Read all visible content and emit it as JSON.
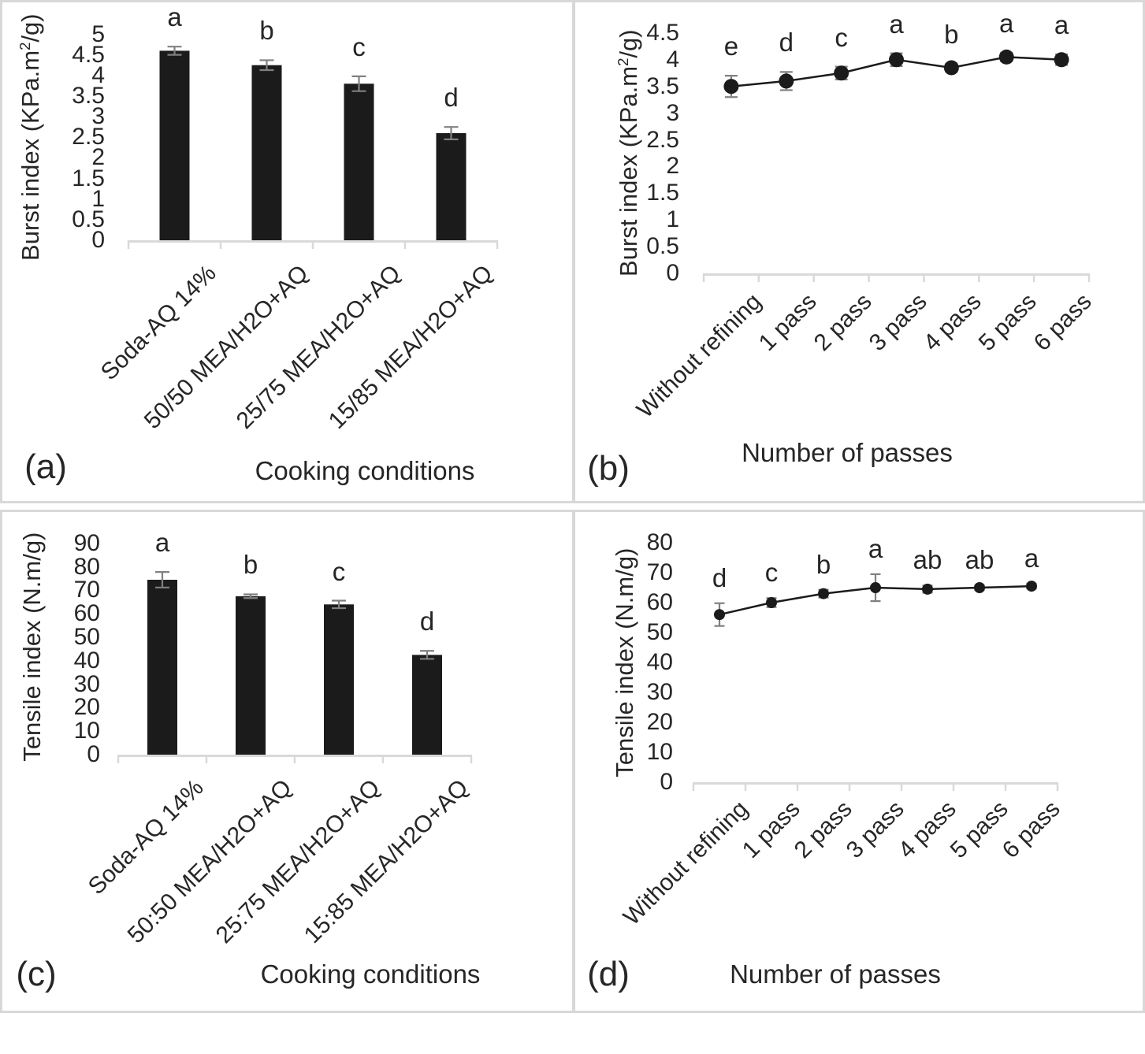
{
  "figure": {
    "background": "#ffffff",
    "border_color": "#d8d8d8",
    "text_color": "#262626",
    "bar_color": "#1b1b1b",
    "line_color": "#1b1b1b",
    "marker_color": "#1b1b1b",
    "error_bar_color": "#808080",
    "axis_color": "#d9d9d9",
    "grid": false,
    "legend": null
  },
  "chart_data": [
    {
      "id": "a",
      "type": "bar",
      "panel_label": "(a)",
      "xlabel": "Cooking conditions",
      "ylabel": "Burst index (KPa.m2/g)",
      "ylabel_parts": {
        "pre": "Burst index (KPa.m",
        "sup": "2",
        "post": "/g)"
      },
      "categories": [
        "Soda-AQ 14%",
        "50/50 MEA/H2O+AQ",
        "25/75 MEA/H2O+AQ",
        "15/85 MEA/H2O+AQ"
      ],
      "values": [
        4.6,
        4.25,
        3.8,
        2.6
      ],
      "errors": [
        0.1,
        0.12,
        0.18,
        0.15
      ],
      "sig_letters": [
        "a",
        "b",
        "c",
        "d"
      ],
      "ylim": [
        0,
        5
      ],
      "ytick_step": 0.5,
      "ytick_labels": [
        "0",
        "0.5",
        "1",
        "1.5",
        "2",
        "2.5",
        "3",
        "3.5",
        "4",
        "4.5",
        "5"
      ],
      "grid": false
    },
    {
      "id": "b",
      "type": "line",
      "panel_label": "(b)",
      "xlabel": "Number of passes",
      "ylabel": "Burst index (KPa.m2/g)",
      "ylabel_parts": {
        "pre": "Burst index (KPa.m",
        "sup": "2",
        "post": "/g)"
      },
      "categories": [
        "Without refining",
        "1 pass",
        "2 pass",
        "3 pass",
        "4 pass",
        "5 pass",
        "6 pass"
      ],
      "values": [
        3.5,
        3.6,
        3.75,
        4.0,
        3.85,
        4.05,
        4.0
      ],
      "errors": [
        0.2,
        0.17,
        0.12,
        0.12,
        0.07,
        0.08,
        0.1
      ],
      "sig_letters": [
        "e",
        "d",
        "c",
        "a",
        "b",
        "a",
        "a"
      ],
      "ylim": [
        0,
        4.5
      ],
      "ytick_step": 0.5,
      "ytick_labels": [
        "0",
        "0.5",
        "1",
        "1.5",
        "2",
        "2.5",
        "3",
        "3.5",
        "4",
        "4.5"
      ],
      "grid": false
    },
    {
      "id": "c",
      "type": "bar",
      "panel_label": "(c)",
      "xlabel": "Cooking conditions",
      "ylabel": "Tensile index (N.m/g)",
      "ylabel_parts": {
        "pre": "Tensile index (N.m/g)",
        "sup": "",
        "post": ""
      },
      "categories": [
        "Soda-AQ 14%",
        "50:50 MEA/H2O+AQ",
        "25:75 MEA/H2O+AQ",
        "15:85 MEA/H2O+AQ"
      ],
      "values": [
        74.5,
        67.5,
        64,
        42.5
      ],
      "errors": [
        3.3,
        0.8,
        1.6,
        1.7
      ],
      "sig_letters": [
        "a",
        "b",
        "c",
        "d"
      ],
      "ylim": [
        0,
        90
      ],
      "ytick_step": 10,
      "ytick_labels": [
        "0",
        "10",
        "20",
        "30",
        "40",
        "50",
        "60",
        "70",
        "80",
        "90"
      ],
      "grid": false
    },
    {
      "id": "d",
      "type": "line",
      "panel_label": "(d)",
      "xlabel": "Number of passes",
      "ylabel": "Tensile index (N.m/g)",
      "ylabel_parts": {
        "pre": "Tensile index (N.m/g)",
        "sup": "",
        "post": ""
      },
      "categories": [
        "Without refining",
        "1 pass",
        "2 pass",
        "3 pass",
        "4 pass",
        "5 pass",
        "6 pass"
      ],
      "values": [
        56,
        60,
        63,
        65,
        64.5,
        65,
        65.5
      ],
      "errors": [
        3.8,
        1.5,
        1.3,
        4.5,
        1.2,
        0.8,
        0.8
      ],
      "sig_letters": [
        "d",
        "c",
        "b",
        "a",
        "ab",
        "ab",
        "a"
      ],
      "ylim": [
        0,
        80
      ],
      "ytick_step": 10,
      "ytick_labels": [
        "0",
        "10",
        "20",
        "30",
        "40",
        "50",
        "60",
        "70",
        "80"
      ],
      "grid": false
    }
  ]
}
